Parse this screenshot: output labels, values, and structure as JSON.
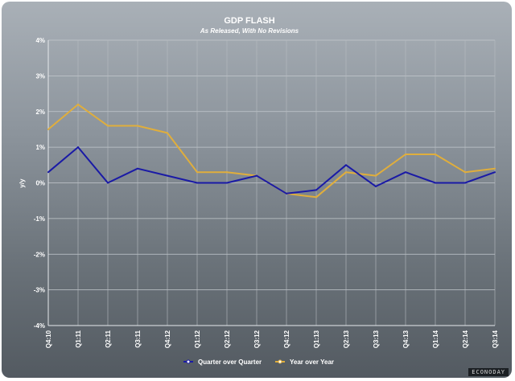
{
  "chart_data": {
    "type": "line",
    "title": "GDP FLASH",
    "subtitle": "As Released, With No Revisions",
    "xlabel": "",
    "ylabel": "y/y",
    "ylim": [
      -4,
      4
    ],
    "yticks": [
      4,
      3,
      2,
      1,
      0,
      -1,
      -2,
      -3,
      -4
    ],
    "ytick_labels": [
      "4%",
      "3%",
      "2%",
      "1%",
      "0%",
      "-1%",
      "-2%",
      "-3%",
      "-4%"
    ],
    "grid": true,
    "legend_position": "bottom",
    "categories": [
      "Q4:10",
      "Q1:11",
      "Q2:11",
      "Q3:11",
      "Q4:12",
      "Q1:12",
      "Q2:12",
      "Q3:12",
      "Q4:12",
      "Q1:13",
      "Q2:13",
      "Q3:13",
      "Q4:13",
      "Q1:14",
      "Q2:14",
      "Q3:14"
    ],
    "series": [
      {
        "name": "Quarter over Quarter",
        "color": "#1a1aa6",
        "values": [
          0.3,
          1.0,
          0.0,
          0.4,
          0.2,
          0.0,
          0.0,
          0.2,
          -0.3,
          -0.2,
          0.5,
          -0.1,
          0.3,
          0.0,
          0.0,
          0.3
        ]
      },
      {
        "name": "Year over Year",
        "color": "#e0ae3c",
        "values": [
          1.5,
          2.2,
          1.6,
          1.6,
          1.4,
          0.3,
          0.3,
          0.2,
          -0.3,
          -0.4,
          0.3,
          0.2,
          0.8,
          0.8,
          0.3,
          0.4
        ]
      }
    ]
  },
  "brand": "ECONODAY"
}
